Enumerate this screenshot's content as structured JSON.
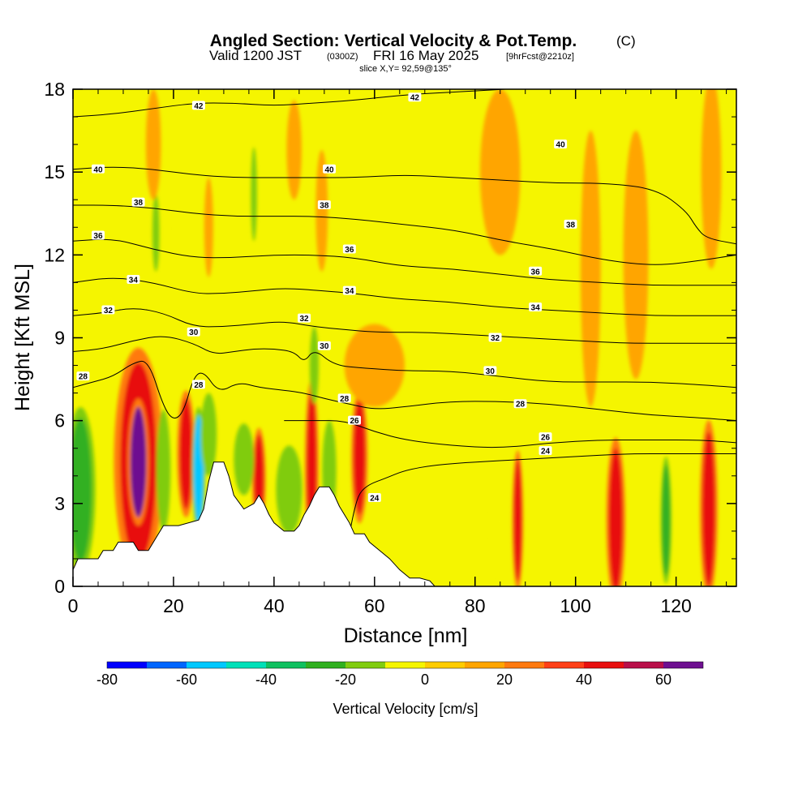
{
  "title": {
    "main": "Angled Section: Vertical Velocity & Pot.Temp.",
    "main_unit": "(C)",
    "valid_prefix": "Valid 1200 JST",
    "valid_utc": "(0300Z)",
    "valid_date": "FRI 16 May 2025",
    "forecast": "[9hrFcst@2210z]",
    "slice": "slice X,Y= 92,59@135°"
  },
  "chart_data": {
    "type": "heatmap",
    "xlabel": "Distance [nm]",
    "ylabel": "Height [Kft MSL]",
    "xlim": [
      0,
      132
    ],
    "ylim": [
      0,
      18
    ],
    "x_ticks": [
      0,
      20,
      40,
      60,
      80,
      100,
      120
    ],
    "y_ticks": [
      0,
      3,
      6,
      9,
      12,
      15,
      18
    ],
    "background_value_cm_s": 0,
    "terrain_kft": [
      [
        0,
        0.6
      ],
      [
        1,
        1.0
      ],
      [
        5,
        1.0
      ],
      [
        6,
        1.3
      ],
      [
        8,
        1.3
      ],
      [
        9,
        1.6
      ],
      [
        12,
        1.6
      ],
      [
        13,
        1.3
      ],
      [
        15,
        1.3
      ],
      [
        16,
        1.6
      ],
      [
        17,
        1.9
      ],
      [
        18,
        2.2
      ],
      [
        20,
        2.2
      ],
      [
        21,
        2.2
      ],
      [
        25,
        2.4
      ],
      [
        26,
        2.8
      ],
      [
        27,
        3.8
      ],
      [
        28,
        4.5
      ],
      [
        30,
        4.5
      ],
      [
        31,
        4.0
      ],
      [
        32,
        3.3
      ],
      [
        34,
        2.8
      ],
      [
        36,
        3.0
      ],
      [
        37,
        3.3
      ],
      [
        38,
        3.0
      ],
      [
        39,
        2.6
      ],
      [
        40,
        2.3
      ],
      [
        42,
        2.0
      ],
      [
        44,
        2.0
      ],
      [
        45,
        2.2
      ],
      [
        46,
        2.6
      ],
      [
        47,
        2.9
      ],
      [
        48,
        3.3
      ],
      [
        49,
        3.6
      ],
      [
        51,
        3.6
      ],
      [
        52,
        3.3
      ],
      [
        53,
        2.9
      ],
      [
        55,
        2.3
      ],
      [
        56,
        1.9
      ],
      [
        58,
        1.9
      ],
      [
        59,
        1.6
      ],
      [
        61,
        1.3
      ],
      [
        63,
        1.0
      ],
      [
        65,
        0.6
      ],
      [
        67,
        0.3
      ],
      [
        69,
        0.3
      ],
      [
        71,
        0.2
      ],
      [
        72,
        0
      ],
      [
        132,
        0
      ]
    ],
    "vertical_velocity_cells_cm_s": [
      {
        "x": 1.5,
        "y": 3.5,
        "rx": 2.2,
        "ry": 2.6,
        "value": -30
      },
      {
        "x": 13,
        "y": 4.5,
        "rx": 3.6,
        "ry": 3.6,
        "value": 40
      },
      {
        "x": 13,
        "y": 4.5,
        "rx": 1.6,
        "ry": 2.0,
        "value": 60
      },
      {
        "x": 18,
        "y": 4.2,
        "rx": 1.4,
        "ry": 2.2,
        "value": -20
      },
      {
        "x": 22.5,
        "y": 4.8,
        "rx": 1.3,
        "ry": 2.0,
        "value": 40
      },
      {
        "x": 25,
        "y": 4.2,
        "rx": 1.0,
        "ry": 2.0,
        "value": -60
      },
      {
        "x": 27,
        "y": 5.5,
        "rx": 1.6,
        "ry": 1.5,
        "value": -20
      },
      {
        "x": 37,
        "y": 3.9,
        "rx": 1.0,
        "ry": 1.6,
        "value": 40
      },
      {
        "x": 34,
        "y": 4.6,
        "rx": 2.0,
        "ry": 1.3,
        "value": -20
      },
      {
        "x": 43,
        "y": 3.5,
        "rx": 2.6,
        "ry": 1.6,
        "value": -20
      },
      {
        "x": 47.5,
        "y": 4.3,
        "rx": 1.0,
        "ry": 2.8,
        "value": 40
      },
      {
        "x": 51,
        "y": 4.2,
        "rx": 1.4,
        "ry": 1.8,
        "value": -20
      },
      {
        "x": 57,
        "y": 4.7,
        "rx": 1.2,
        "ry": 2.1,
        "value": 40
      },
      {
        "x": 88.5,
        "y": 2.4,
        "rx": 0.8,
        "ry": 2.2,
        "value": 40
      },
      {
        "x": 84,
        "y": 2.2,
        "rx": 0.6,
        "ry": 1.8,
        "value": -10
      },
      {
        "x": 108,
        "y": 2.4,
        "rx": 1.4,
        "ry": 2.6,
        "value": 40
      },
      {
        "x": 114,
        "y": 2.6,
        "rx": 0.6,
        "ry": 2.0,
        "value": -10
      },
      {
        "x": 118,
        "y": 2.4,
        "rx": 0.8,
        "ry": 2.0,
        "value": -30
      },
      {
        "x": 126.5,
        "y": 2.8,
        "rx": 1.3,
        "ry": 2.8,
        "value": 40
      },
      {
        "x": 16.5,
        "y": 12.8,
        "rx": 0.7,
        "ry": 1.4,
        "value": -20
      },
      {
        "x": 21,
        "y": 13.2,
        "rx": 0.6,
        "ry": 1.4,
        "value": -10
      },
      {
        "x": 36,
        "y": 14.2,
        "rx": 0.6,
        "ry": 1.7,
        "value": -20
      },
      {
        "x": 48,
        "y": 8.0,
        "rx": 0.9,
        "ry": 1.4,
        "value": -20
      },
      {
        "x": 27,
        "y": 13.0,
        "rx": 0.9,
        "ry": 1.8,
        "value": 15
      },
      {
        "x": 49.5,
        "y": 13.6,
        "rx": 1.2,
        "ry": 2.2,
        "value": 15
      },
      {
        "x": 16,
        "y": 16.0,
        "rx": 1.5,
        "ry": 2.0,
        "value": 10
      },
      {
        "x": 44,
        "y": 15.8,
        "rx": 1.5,
        "ry": 1.8,
        "value": 10
      },
      {
        "x": 85,
        "y": 15.0,
        "rx": 4.0,
        "ry": 3.0,
        "value": 10
      },
      {
        "x": 103,
        "y": 11.5,
        "rx": 2.0,
        "ry": 5.0,
        "value": 10
      },
      {
        "x": 112,
        "y": 12.0,
        "rx": 2.5,
        "ry": 4.5,
        "value": 10
      },
      {
        "x": 127,
        "y": 15.0,
        "rx": 2.0,
        "ry": 3.5,
        "value": 10
      },
      {
        "x": 60,
        "y": 8.0,
        "rx": 6.0,
        "ry": 1.5,
        "value": 10
      }
    ],
    "potential_temperature_contours_C": [
      {
        "label": "24",
        "points": [
          [
            55,
            1.9
          ],
          [
            56,
            2.8
          ],
          [
            57,
            3.4
          ],
          [
            59,
            3.7
          ],
          [
            62,
            3.9
          ],
          [
            66,
            4.2
          ],
          [
            72,
            4.4
          ],
          [
            80,
            4.5
          ],
          [
            90,
            4.6
          ],
          [
            100,
            4.7
          ],
          [
            110,
            4.8
          ],
          [
            120,
            4.8
          ],
          [
            132,
            4.8
          ]
        ],
        "labels_at": [
          [
            60,
            3.2
          ],
          [
            94,
            4.9
          ]
        ]
      },
      {
        "label": "26",
        "points": [
          [
            42,
            6.0
          ],
          [
            48,
            6.0
          ],
          [
            54,
            6.0
          ],
          [
            60,
            5.6
          ],
          [
            66,
            5.3
          ],
          [
            75,
            5.1
          ],
          [
            85,
            5.0
          ],
          [
            95,
            5.2
          ],
          [
            105,
            5.3
          ],
          [
            115,
            5.3
          ],
          [
            125,
            5.3
          ],
          [
            132,
            5.2
          ]
        ],
        "labels_at": [
          [
            56,
            6.0
          ],
          [
            94,
            5.4
          ]
        ]
      },
      {
        "label": "28",
        "points": [
          [
            0,
            7.2
          ],
          [
            4,
            7.4
          ],
          [
            8,
            7.6
          ],
          [
            12,
            8.1
          ],
          [
            15,
            8.2
          ],
          [
            18,
            6.5
          ],
          [
            20,
            6.0
          ],
          [
            22,
            6.3
          ],
          [
            24,
            7.6
          ],
          [
            26,
            7.8
          ],
          [
            29,
            7.0
          ],
          [
            33,
            7.4
          ],
          [
            37,
            7.2
          ],
          [
            42,
            7.1
          ],
          [
            46,
            7.0
          ],
          [
            50,
            6.8
          ],
          [
            55,
            6.6
          ],
          [
            60,
            6.4
          ],
          [
            66,
            6.5
          ],
          [
            75,
            6.7
          ],
          [
            85,
            6.7
          ],
          [
            95,
            6.6
          ],
          [
            105,
            6.4
          ],
          [
            115,
            6.2
          ],
          [
            125,
            6.1
          ],
          [
            132,
            6.0
          ]
        ],
        "labels_at": [
          [
            2,
            7.6
          ],
          [
            25,
            7.3
          ],
          [
            54,
            6.8
          ],
          [
            89,
            6.6
          ]
        ]
      },
      {
        "label": "30",
        "points": [
          [
            0,
            8.5
          ],
          [
            6,
            8.6
          ],
          [
            12,
            8.9
          ],
          [
            18,
            9.1
          ],
          [
            24,
            8.8
          ],
          [
            28,
            8.4
          ],
          [
            32,
            8.5
          ],
          [
            36,
            8.6
          ],
          [
            40,
            8.6
          ],
          [
            44,
            8.5
          ],
          [
            46,
            8.1
          ],
          [
            48,
            8.6
          ],
          [
            52,
            8.0
          ],
          [
            58,
            7.9
          ],
          [
            66,
            7.8
          ],
          [
            75,
            7.8
          ],
          [
            85,
            7.6
          ],
          [
            95,
            7.4
          ],
          [
            105,
            7.4
          ],
          [
            115,
            7.4
          ],
          [
            125,
            7.3
          ],
          [
            132,
            7.2
          ]
        ],
        "labels_at": [
          [
            24,
            9.2
          ],
          [
            50,
            8.7
          ],
          [
            83,
            7.8
          ]
        ]
      },
      {
        "label": "32",
        "points": [
          [
            0,
            9.8
          ],
          [
            6,
            9.9
          ],
          [
            12,
            10.1
          ],
          [
            18,
            9.9
          ],
          [
            24,
            9.4
          ],
          [
            30,
            9.4
          ],
          [
            36,
            9.5
          ],
          [
            42,
            9.6
          ],
          [
            48,
            9.4
          ],
          [
            54,
            9.3
          ],
          [
            60,
            9.2
          ],
          [
            70,
            9.2
          ],
          [
            80,
            9.1
          ],
          [
            90,
            9.0
          ],
          [
            100,
            8.9
          ],
          [
            110,
            8.8
          ],
          [
            120,
            8.8
          ],
          [
            132,
            8.8
          ]
        ],
        "labels_at": [
          [
            7,
            10.0
          ],
          [
            46,
            9.7
          ],
          [
            84,
            9.0
          ]
        ]
      },
      {
        "label": "34",
        "points": [
          [
            0,
            11.0
          ],
          [
            8,
            11.2
          ],
          [
            16,
            11.0
          ],
          [
            24,
            10.6
          ],
          [
            30,
            10.6
          ],
          [
            36,
            10.7
          ],
          [
            42,
            10.8
          ],
          [
            50,
            10.7
          ],
          [
            56,
            10.6
          ],
          [
            65,
            10.4
          ],
          [
            75,
            10.3
          ],
          [
            85,
            10.1
          ],
          [
            95,
            10.0
          ],
          [
            105,
            9.9
          ],
          [
            115,
            9.8
          ],
          [
            125,
            9.8
          ],
          [
            132,
            9.8
          ]
        ],
        "labels_at": [
          [
            12,
            11.1
          ],
          [
            55,
            10.7
          ],
          [
            92,
            10.1
          ]
        ]
      },
      {
        "label": "36",
        "points": [
          [
            0,
            12.5
          ],
          [
            8,
            12.6
          ],
          [
            16,
            12.2
          ],
          [
            24,
            11.9
          ],
          [
            32,
            11.9
          ],
          [
            40,
            12.0
          ],
          [
            48,
            12.0
          ],
          [
            56,
            11.9
          ],
          [
            65,
            11.6
          ],
          [
            75,
            11.5
          ],
          [
            85,
            11.3
          ],
          [
            95,
            11.1
          ],
          [
            105,
            11.0
          ],
          [
            115,
            10.9
          ],
          [
            125,
            10.9
          ],
          [
            132,
            10.9
          ]
        ],
        "labels_at": [
          [
            5,
            12.7
          ],
          [
            55,
            12.2
          ],
          [
            92,
            11.4
          ]
        ]
      },
      {
        "label": "38",
        "points": [
          [
            0,
            13.8
          ],
          [
            8,
            13.8
          ],
          [
            16,
            13.7
          ],
          [
            24,
            13.5
          ],
          [
            32,
            13.4
          ],
          [
            40,
            13.4
          ],
          [
            48,
            13.4
          ],
          [
            56,
            13.3
          ],
          [
            66,
            13.1
          ],
          [
            76,
            12.9
          ],
          [
            86,
            12.5
          ],
          [
            96,
            12.2
          ],
          [
            106,
            11.8
          ],
          [
            116,
            11.6
          ],
          [
            125,
            11.8
          ],
          [
            132,
            12.0
          ]
        ],
        "labels_at": [
          [
            13,
            13.9
          ],
          [
            50,
            13.8
          ],
          [
            99,
            13.1
          ]
        ]
      },
      {
        "label": "40",
        "points": [
          [
            0,
            15.1
          ],
          [
            8,
            15.2
          ],
          [
            16,
            15.1
          ],
          [
            24,
            14.9
          ],
          [
            32,
            14.8
          ],
          [
            40,
            14.8
          ],
          [
            48,
            14.8
          ],
          [
            56,
            14.8
          ],
          [
            66,
            14.9
          ],
          [
            76,
            14.8
          ],
          [
            86,
            14.7
          ],
          [
            96,
            14.6
          ],
          [
            106,
            14.6
          ],
          [
            116,
            14.4
          ],
          [
            122,
            13.6
          ],
          [
            124,
            13.0
          ],
          [
            126,
            12.6
          ],
          [
            132,
            12.4
          ]
        ],
        "labels_at": [
          [
            5,
            15.1
          ],
          [
            51,
            15.1
          ],
          [
            97,
            16.0
          ]
        ]
      },
      {
        "label": "42",
        "points": [
          [
            0,
            17.0
          ],
          [
            8,
            17.1
          ],
          [
            16,
            17.3
          ],
          [
            24,
            17.5
          ],
          [
            32,
            17.5
          ],
          [
            40,
            17.4
          ],
          [
            48,
            17.5
          ],
          [
            56,
            17.6
          ],
          [
            66,
            17.8
          ],
          [
            76,
            17.9
          ],
          [
            86,
            18.0
          ]
        ],
        "labels_at": [
          [
            25,
            17.4
          ],
          [
            68,
            17.7
          ]
        ]
      }
    ],
    "colorbar": {
      "title": "Vertical Velocity [cm/s]",
      "bounds": [
        -80,
        -70,
        -60,
        -50,
        -40,
        -30,
        -20,
        -10,
        0,
        10,
        20,
        30,
        40,
        50,
        60,
        70
      ],
      "colors": [
        "#0000ff",
        "#0066ff",
        "#00c8ff",
        "#00e0b8",
        "#10c060",
        "#30b020",
        "#80cc10",
        "#f5f500",
        "#ffcc00",
        "#ffa500",
        "#ff7a10",
        "#ff4018",
        "#e81010",
        "#b8104a",
        "#6e1090"
      ],
      "tick_labels": [
        "-80",
        "-60",
        "-40",
        "-20",
        "0",
        "20",
        "40",
        "60"
      ],
      "tick_values": [
        -80,
        -60,
        -40,
        -20,
        0,
        20,
        40,
        60
      ]
    }
  }
}
